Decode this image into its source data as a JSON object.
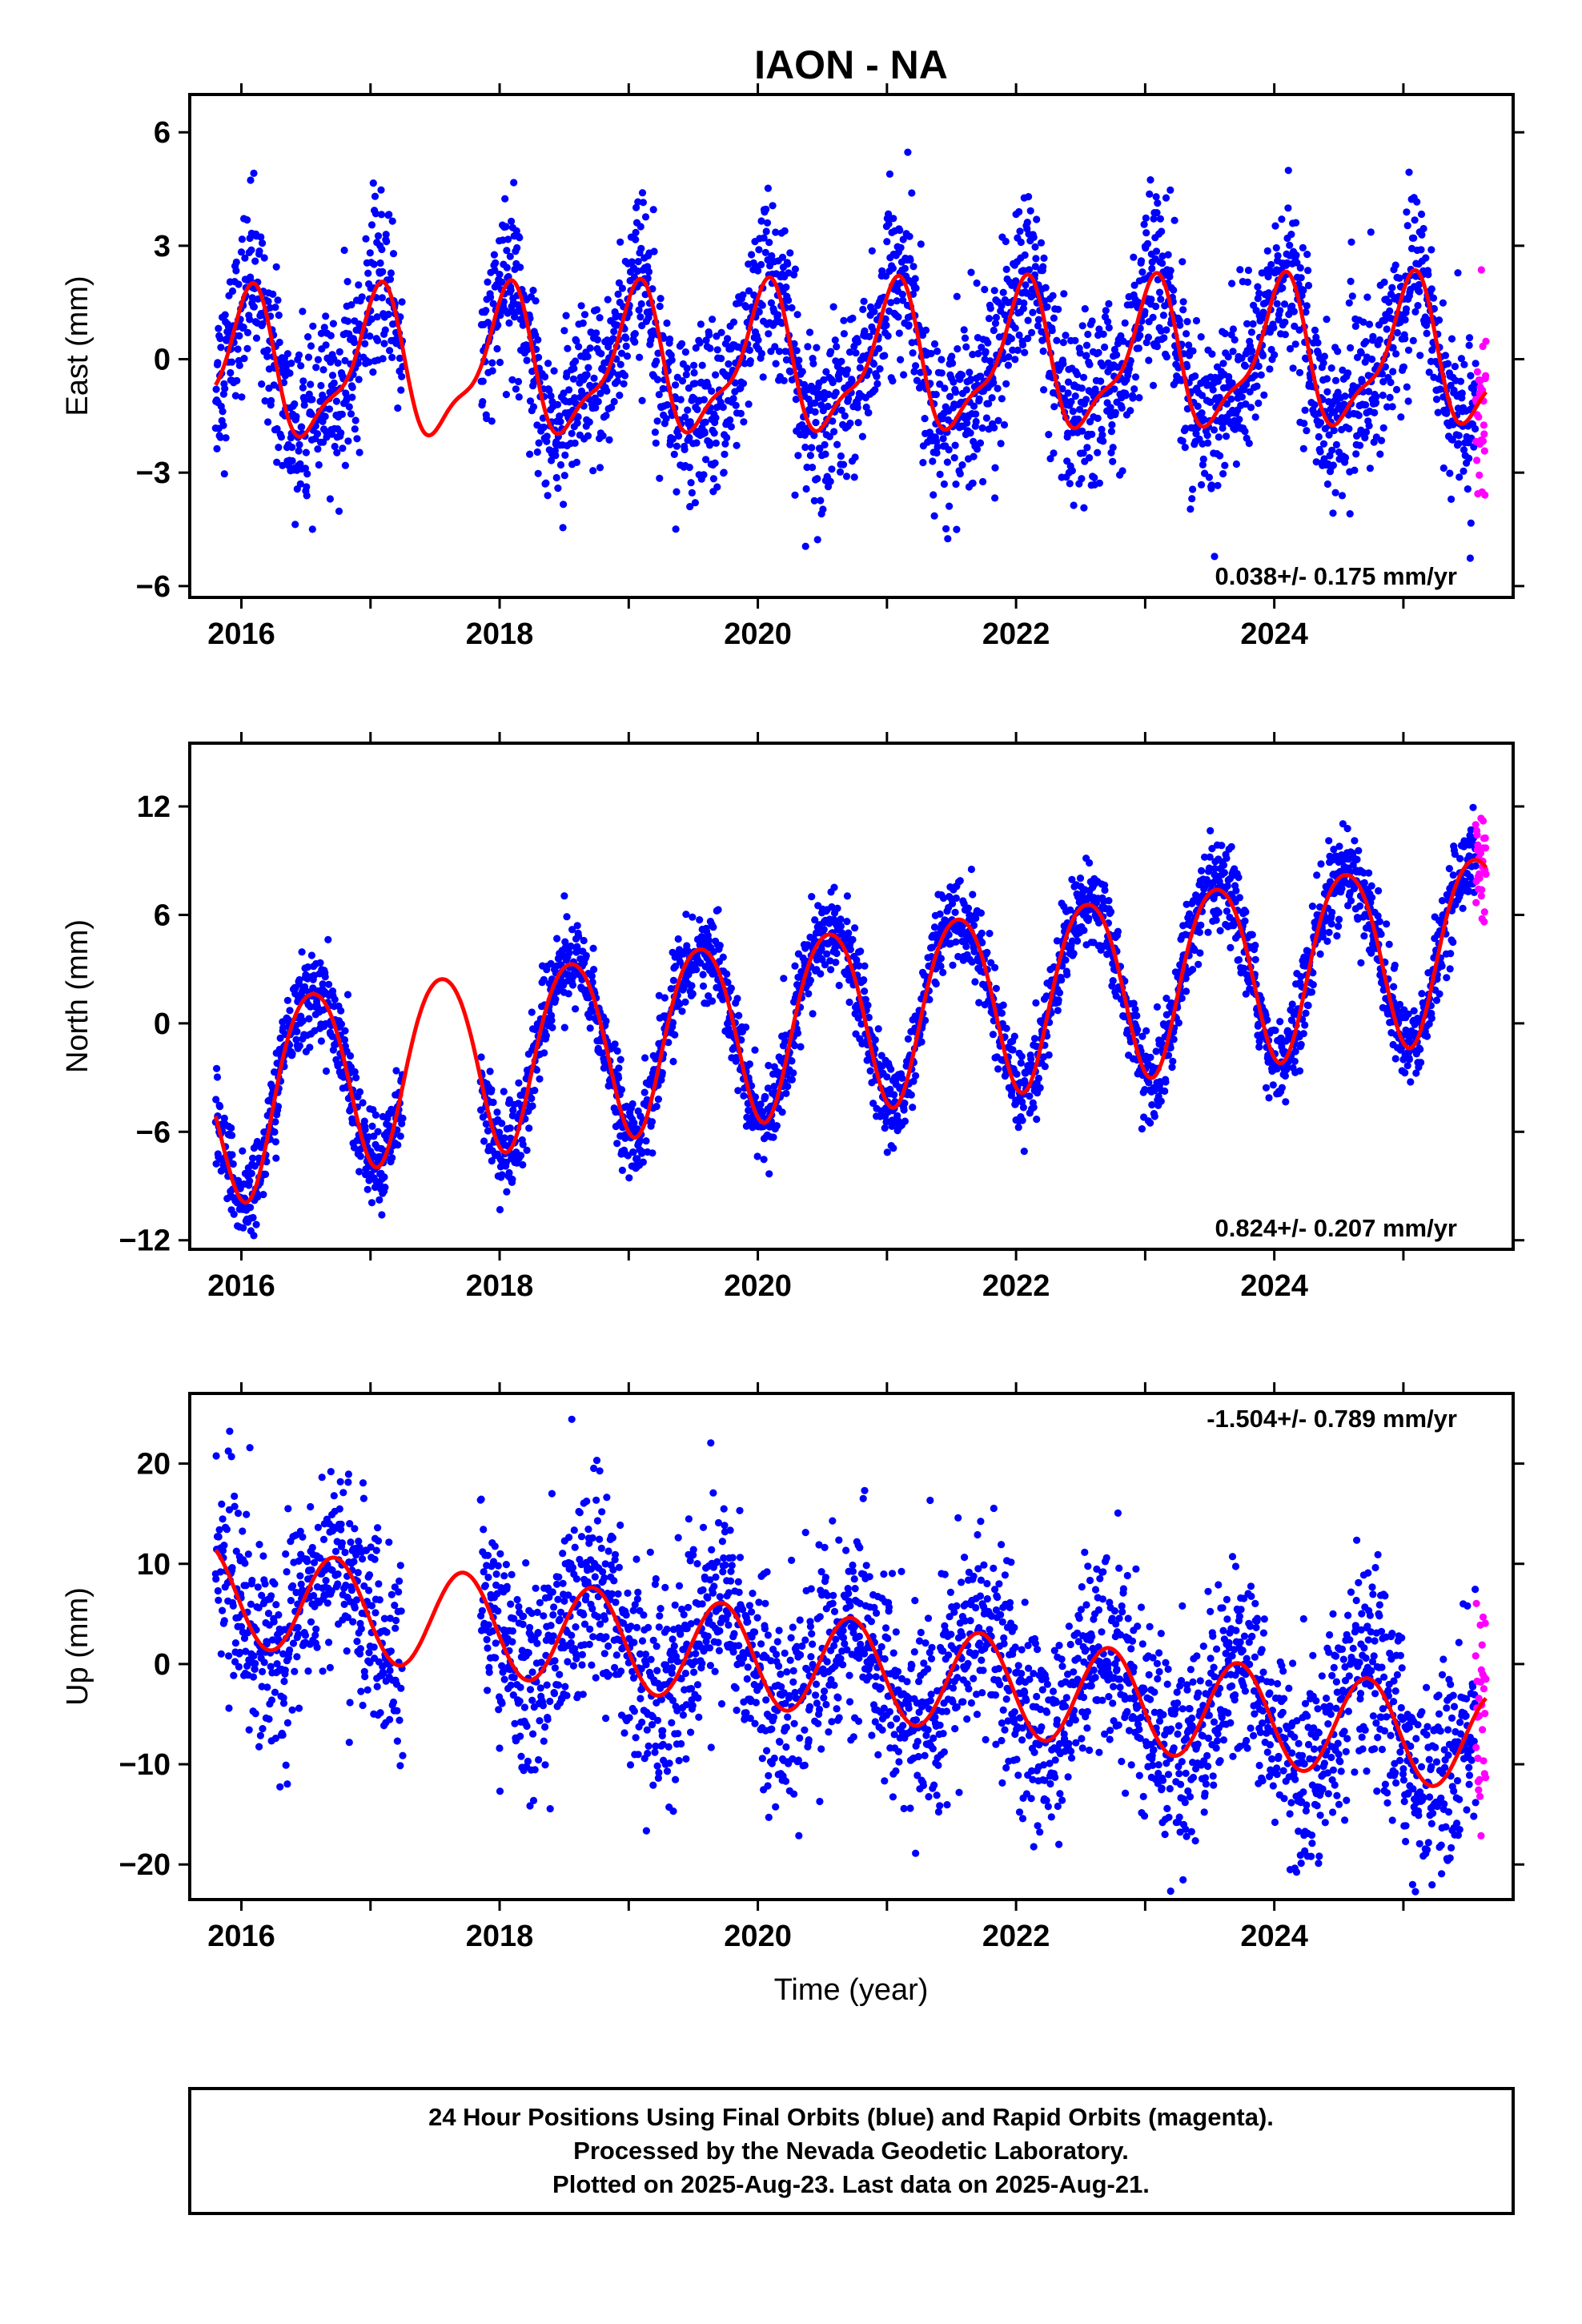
{
  "title": "IAON - NA",
  "colors": {
    "final_orbits": "#0000ff",
    "rapid_orbits": "#ff00ff",
    "model_fit": "#ff0000",
    "frame": "#000000"
  },
  "xlabel": "Time (year)",
  "footer": {
    "line1": "24 Hour Positions Using Final Orbits (blue) and Rapid Orbits (magenta).",
    "line2": "Processed by the Nevada Geodetic Laboratory.",
    "line3": "Plotted on 2025-Aug-23. Last data on 2025-Aug-21."
  },
  "chart_data": [
    {
      "type": "scatter",
      "component": "east",
      "ylabel": "East (mm)",
      "xlim": [
        2015.6,
        2025.85
      ],
      "ylim": [
        -6.3,
        7.0
      ],
      "xticks": [
        2016,
        2018,
        2020,
        2022,
        2024
      ],
      "yticks": [
        -6,
        -3,
        0,
        3,
        6
      ],
      "rate": "0.038+/- 0.175 mm/yr",
      "rate_position": "bottom-right",
      "data_start": 2015.8,
      "data_end": 2025.64,
      "data_gap": [
        2017.25,
        2017.85
      ],
      "rapid_start": 2025.56,
      "scatter_sd": 1.1,
      "series": [
        {
          "name": "Final Orbits",
          "color": "#0000ff",
          "style": "points"
        },
        {
          "name": "Rapid Orbits",
          "color": "#ff00ff",
          "style": "points"
        },
        {
          "name": "Model",
          "color": "#ff0000",
          "style": "line",
          "model": {
            "offset": -0.3,
            "rate": 0.038,
            "annual_amplitude": 1.8,
            "annual_peak": 0.05,
            "semiannual_amplitude": 0.6,
            "semiannual_peak": 0.12
          }
        }
      ]
    },
    {
      "type": "scatter",
      "component": "north",
      "ylabel": "North (mm)",
      "xlim": [
        2015.6,
        2025.85
      ],
      "ylim": [
        -12.5,
        15.5
      ],
      "xticks": [
        2016,
        2018,
        2020,
        2022,
        2024
      ],
      "yticks": [
        -12,
        -6,
        0,
        6,
        12
      ],
      "rate": "0.824+/- 0.207 mm/yr",
      "rate_position": "bottom-right",
      "data_start": 2015.8,
      "data_end": 2025.64,
      "data_gap": [
        2017.25,
        2017.85
      ],
      "rapid_start": 2025.56,
      "scatter_sd": 1.2,
      "series": [
        {
          "name": "Final Orbits",
          "color": "#0000ff",
          "style": "points"
        },
        {
          "name": "Rapid Orbits",
          "color": "#ff00ff",
          "style": "points"
        },
        {
          "name": "Model",
          "color": "#ff0000",
          "style": "line",
          "model": {
            "offset": -3.5,
            "rate": 0.824,
            "annual_amplitude": 5.0,
            "annual_peak": 0.55,
            "semiannual_amplitude": 0.5,
            "semiannual_peak": 0.3,
            "early_offset": -3.0,
            "early_end": 2016.3
          }
        }
      ]
    },
    {
      "type": "scatter",
      "component": "up",
      "ylabel": "Up (mm)",
      "xlim": [
        2015.6,
        2025.85
      ],
      "ylim": [
        -23.5,
        27.0
      ],
      "xticks": [
        2016,
        2018,
        2020,
        2022,
        2024
      ],
      "yticks": [
        -20,
        -10,
        0,
        10,
        20
      ],
      "rate": "-1.504+/- 0.789 mm/yr",
      "rate_position": "top-right",
      "data_start": 2015.8,
      "data_end": 2025.64,
      "data_gap": [
        2017.25,
        2017.85
      ],
      "rapid_start": 2025.56,
      "scatter_sd": 5.0,
      "series": [
        {
          "name": "Final Orbits",
          "color": "#0000ff",
          "style": "points"
        },
        {
          "name": "Rapid Orbits",
          "color": "#ff00ff",
          "style": "points"
        },
        {
          "name": "Model",
          "color": "#ff0000",
          "style": "line",
          "model": {
            "offset": 7.0,
            "rate": -1.504,
            "annual_amplitude": 5.0,
            "annual_peak": 0.72,
            "semiannual_amplitude": 0.0,
            "semiannual_peak": 0.0
          }
        }
      ]
    }
  ]
}
